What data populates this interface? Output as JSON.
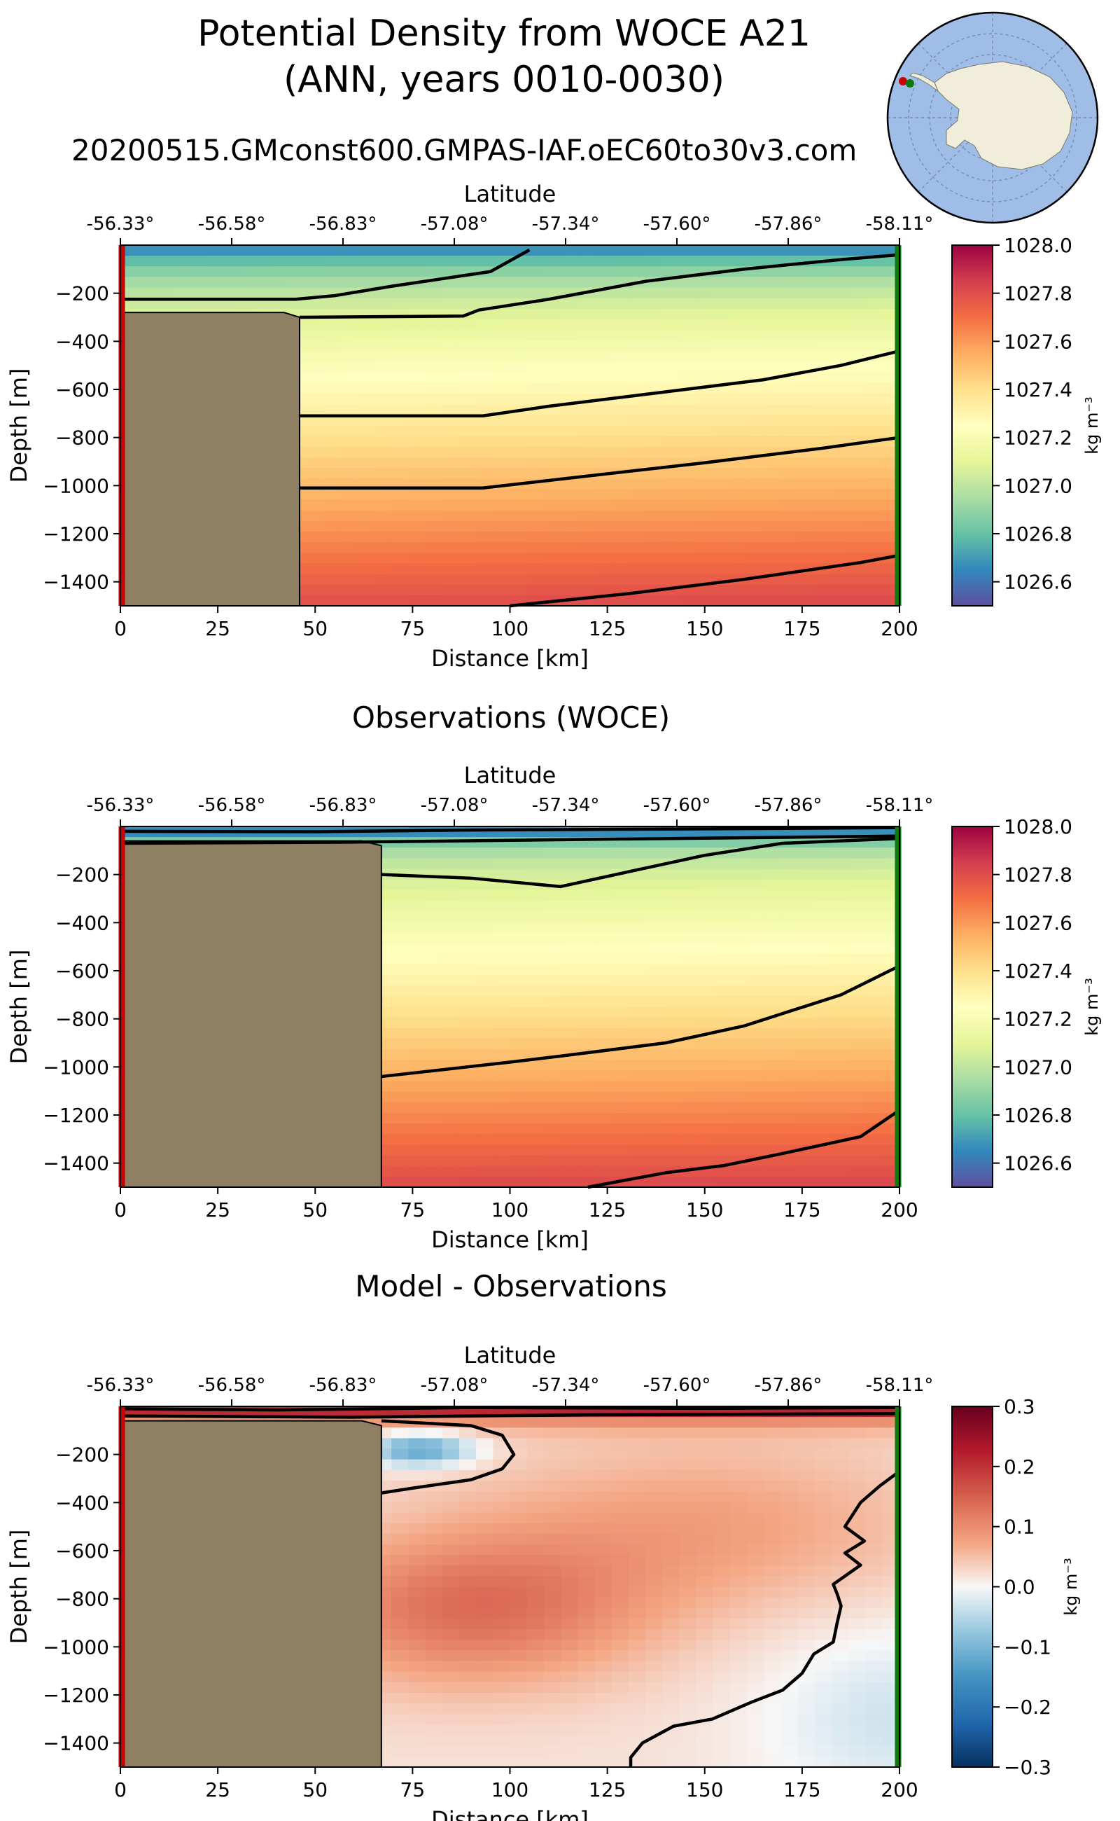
{
  "header": {
    "title_line1": "Potential Density from WOCE A21",
    "title_line2": "(ANN, years 0010-0030)",
    "run_name": "20200515.GMconst600.GMPAS-IAF.oEC60to30v3.com"
  },
  "colors": {
    "land": "#8f7f63",
    "start_marker": "#cc0000",
    "end_marker": "#0a7a0a",
    "contour": "#000000",
    "map_ocean": "#9fbde6",
    "map_land": "#f0eddb"
  },
  "chart_data": [
    {
      "type": "heatmap",
      "title": "",
      "xlabel": "Distance [km]",
      "ylabel": "Depth [m]",
      "top_axis_label": "Latitude",
      "x_ticks": [
        0,
        25,
        50,
        75,
        100,
        125,
        150,
        175,
        200
      ],
      "y_ticks": [
        -200,
        -400,
        -600,
        -800,
        -1000,
        -1200,
        -1400
      ],
      "lat_ticks": [
        "-56.33°",
        "-56.58°",
        "-56.83°",
        "-57.08°",
        "-57.34°",
        "-57.60°",
        "-57.86°",
        "-58.11°"
      ],
      "xlim": [
        0,
        200
      ],
      "ylim": [
        -1500,
        0
      ],
      "colormap": "Spectral_r",
      "colorbar": {
        "label": "kg m⁻³",
        "vmin": 1026.5,
        "vmax": 1028.0,
        "ticks": [
          "1028.0",
          "1027.8",
          "1027.6",
          "1027.4",
          "1027.2",
          "1027.0",
          "1026.8",
          "1026.6"
        ]
      },
      "land_profile": [
        [
          0,
          -280
        ],
        [
          42,
          -280
        ],
        [
          46,
          -300
        ],
        [
          46,
          -1500
        ]
      ],
      "field": {
        "surface": 1026.6,
        "surface_thickness": 90,
        "interior_top": 1027.02,
        "interior_bottom": 1027.8,
        "deepen_per_km": 0.0033,
        "base": 1026.92,
        "gradient_per_m": 0.00058
      },
      "contours": [
        [
          [
            0,
            -225
          ],
          [
            45,
            -225
          ],
          [
            55,
            -210
          ],
          [
            70,
            -170
          ],
          [
            95,
            -110
          ],
          [
            105,
            -20
          ]
        ],
        [
          [
            46,
            -300
          ],
          [
            88,
            -295
          ],
          [
            92,
            -270
          ],
          [
            110,
            -225
          ],
          [
            135,
            -150
          ],
          [
            160,
            -100
          ],
          [
            185,
            -60
          ],
          [
            200,
            -40
          ]
        ],
        [
          [
            46,
            -710
          ],
          [
            93,
            -710
          ],
          [
            110,
            -670
          ],
          [
            135,
            -620
          ],
          [
            165,
            -560
          ],
          [
            185,
            -500
          ],
          [
            200,
            -440
          ]
        ],
        [
          [
            46,
            -1010
          ],
          [
            93,
            -1010
          ],
          [
            120,
            -960
          ],
          [
            150,
            -905
          ],
          [
            180,
            -845
          ],
          [
            200,
            -800
          ]
        ],
        [
          [
            100,
            -1500
          ],
          [
            130,
            -1450
          ],
          [
            160,
            -1390
          ],
          [
            190,
            -1320
          ],
          [
            200,
            -1290
          ]
        ]
      ]
    },
    {
      "type": "heatmap",
      "title": "Observations (WOCE)",
      "xlabel": "Distance [km]",
      "ylabel": "Depth [m]",
      "top_axis_label": "Latitude",
      "x_ticks": [
        0,
        25,
        50,
        75,
        100,
        125,
        150,
        175,
        200
      ],
      "y_ticks": [
        -200,
        -400,
        -600,
        -800,
        -1000,
        -1200,
        -1400
      ],
      "lat_ticks": [
        "-56.33°",
        "-56.58°",
        "-56.83°",
        "-57.08°",
        "-57.34°",
        "-57.60°",
        "-57.86°",
        "-58.11°"
      ],
      "xlim": [
        0,
        200
      ],
      "ylim": [
        -1500,
        0
      ],
      "colormap": "Spectral_r",
      "colorbar": {
        "label": "kg m⁻³",
        "vmin": 1026.5,
        "vmax": 1028.0,
        "ticks": [
          "1028.0",
          "1027.8",
          "1027.6",
          "1027.4",
          "1027.2",
          "1027.0",
          "1026.8",
          "1026.6"
        ]
      },
      "land_profile": [
        [
          0,
          -60
        ],
        [
          62,
          -60
        ],
        [
          67,
          -80
        ],
        [
          67,
          -1500
        ]
      ],
      "field": {
        "surface": 1026.5,
        "surface_thickness": 50,
        "interior_top": 1026.95,
        "interior_bottom": 1027.78,
        "deepen_per_km": 0.003,
        "base": 1026.93,
        "gradient_per_m": 0.00058
      },
      "contours": [
        [
          [
            0,
            -20
          ],
          [
            50,
            -22
          ],
          [
            90,
            -15
          ],
          [
            150,
            -10
          ],
          [
            200,
            -5
          ]
        ],
        [
          [
            0,
            -70
          ],
          [
            60,
            -65
          ],
          [
            130,
            -52
          ],
          [
            200,
            -40
          ]
        ],
        [
          [
            67,
            -200
          ],
          [
            90,
            -215
          ],
          [
            113,
            -250
          ],
          [
            130,
            -190
          ],
          [
            150,
            -120
          ],
          [
            170,
            -70
          ],
          [
            200,
            -50
          ]
        ],
        [
          [
            67,
            -1040
          ],
          [
            100,
            -980
          ],
          [
            113,
            -955
          ],
          [
            140,
            -900
          ],
          [
            160,
            -830
          ],
          [
            185,
            -700
          ],
          [
            200,
            -580
          ]
        ],
        [
          [
            120,
            -1500
          ],
          [
            140,
            -1440
          ],
          [
            155,
            -1410
          ],
          [
            170,
            -1360
          ],
          [
            190,
            -1290
          ],
          [
            200,
            -1180
          ]
        ]
      ]
    },
    {
      "type": "heatmap",
      "title": "Model - Observations",
      "xlabel": "Distance [km]",
      "ylabel": "Depth [m]",
      "top_axis_label": "Latitude",
      "x_ticks": [
        0,
        25,
        50,
        75,
        100,
        125,
        150,
        175,
        200
      ],
      "y_ticks": [
        -200,
        -400,
        -600,
        -800,
        -1000,
        -1200,
        -1400
      ],
      "lat_ticks": [
        "-56.33°",
        "-56.58°",
        "-56.83°",
        "-57.08°",
        "-57.34°",
        "-57.60°",
        "-57.86°",
        "-58.11°"
      ],
      "xlim": [
        0,
        200
      ],
      "ylim": [
        -1500,
        0
      ],
      "colormap": "RdBu_r",
      "colorbar": {
        "label": "kg m⁻³",
        "vmin": -0.3,
        "vmax": 0.3,
        "ticks": [
          "0.3",
          "0.2",
          "0.1",
          "0.0",
          "−0.1",
          "−0.2",
          "−0.3"
        ]
      },
      "land_profile": [
        [
          0,
          -60
        ],
        [
          62,
          -60
        ],
        [
          67,
          -80
        ],
        [
          67,
          -1500
        ]
      ],
      "field": {
        "surface_anomaly": 0.3,
        "surface_thickness": 45,
        "cold_anomaly": -0.15,
        "warm_anomaly": 0.11,
        "zero_line": "second contour"
      },
      "contours": [
        [
          [
            0,
            -10
          ],
          [
            40,
            -15
          ],
          [
            90,
            -5
          ],
          [
            150,
            -8
          ],
          [
            200,
            -5
          ]
        ],
        [
          [
            0,
            -40
          ],
          [
            60,
            -45
          ],
          [
            120,
            -35
          ],
          [
            200,
            -30
          ]
        ],
        [
          [
            67,
            -60
          ],
          [
            90,
            -80
          ],
          [
            98,
            -120
          ],
          [
            101,
            -200
          ],
          [
            98,
            -260
          ],
          [
            90,
            -305
          ],
          [
            75,
            -340
          ],
          [
            67,
            -360
          ]
        ],
        [
          [
            131,
            -1500
          ],
          [
            131,
            -1460
          ],
          [
            134,
            -1400
          ],
          [
            142,
            -1330
          ],
          [
            152,
            -1300
          ],
          [
            162,
            -1230
          ],
          [
            170,
            -1180
          ],
          [
            175,
            -1110
          ],
          [
            178,
            -1030
          ],
          [
            183,
            -980
          ],
          [
            184,
            -900
          ],
          [
            185,
            -830
          ],
          [
            184,
            -780
          ],
          [
            183,
            -740
          ],
          [
            190,
            -660
          ],
          [
            186,
            -610
          ],
          [
            191,
            -560
          ],
          [
            186,
            -500
          ],
          [
            190,
            -400
          ],
          [
            195,
            -330
          ],
          [
            200,
            -270
          ]
        ]
      ]
    }
  ]
}
